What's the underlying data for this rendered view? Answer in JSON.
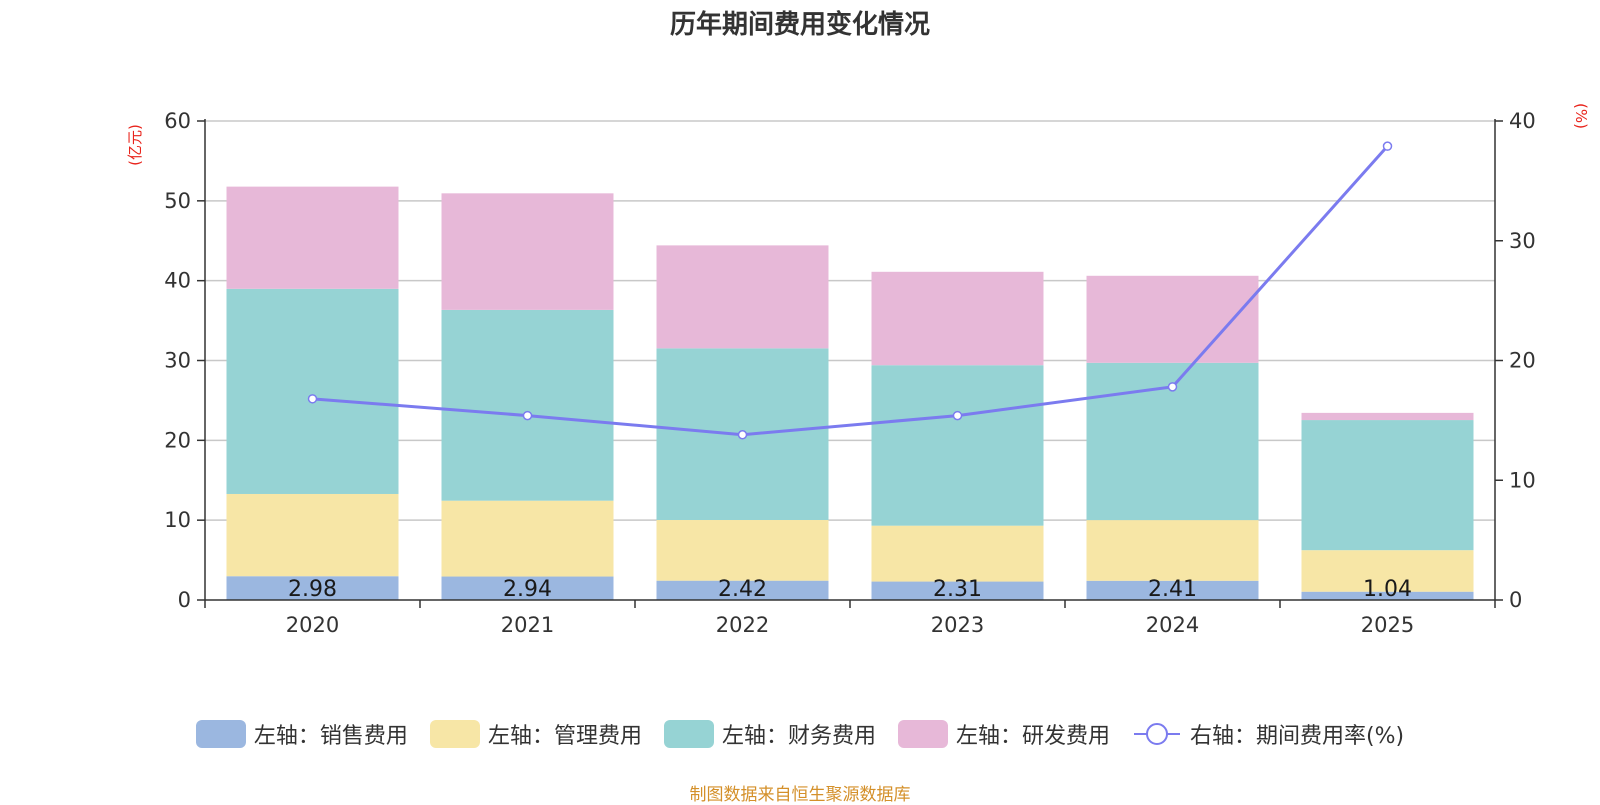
{
  "chart_data": {
    "type": "bar",
    "title": "历年期间费用变化情况",
    "categories": [
      "2020",
      "2021",
      "2022",
      "2023",
      "2024",
      "2025"
    ],
    "left_axis": {
      "unit": "(亿元)",
      "ylim": [
        0,
        60
      ],
      "ticks": [
        "0",
        "10",
        "20",
        "30",
        "40",
        "50",
        "60"
      ]
    },
    "right_axis": {
      "unit": "(%)",
      "ylim": [
        0,
        40
      ],
      "ticks": [
        "0",
        "10",
        "20",
        "30",
        "40"
      ]
    },
    "series": [
      {
        "name": "左轴：销售费用",
        "type": "bar",
        "axis": "left",
        "color": "#9bb7e0",
        "values": [
          2.98,
          2.94,
          2.42,
          2.31,
          2.41,
          1.04
        ],
        "labels": [
          "2.98",
          "2.94",
          "2.42",
          "2.31",
          "2.41",
          "1.04"
        ]
      },
      {
        "name": "左轴：管理费用",
        "type": "bar",
        "axis": "left",
        "color": "#f7e6a6",
        "values": [
          10.3,
          9.5,
          7.6,
          7.0,
          7.6,
          5.2
        ]
      },
      {
        "name": "左轴：财务费用",
        "type": "bar",
        "axis": "left",
        "color": "#96d3d4",
        "values": [
          25.7,
          23.9,
          21.5,
          20.1,
          19.7,
          16.3
        ]
      },
      {
        "name": "左轴：研发费用",
        "type": "bar",
        "axis": "left",
        "color": "#e7b8d8",
        "values": [
          12.8,
          14.6,
          12.9,
          11.7,
          10.9,
          0.9
        ]
      },
      {
        "name": "右轴：期间费用率(%)",
        "type": "line",
        "axis": "right",
        "color": "#7b7bef",
        "values": [
          16.8,
          15.4,
          13.8,
          15.4,
          17.8,
          37.9
        ]
      }
    ],
    "grid": true,
    "legend_position": "bottom"
  },
  "source": "制图数据来自恒生聚源数据库"
}
